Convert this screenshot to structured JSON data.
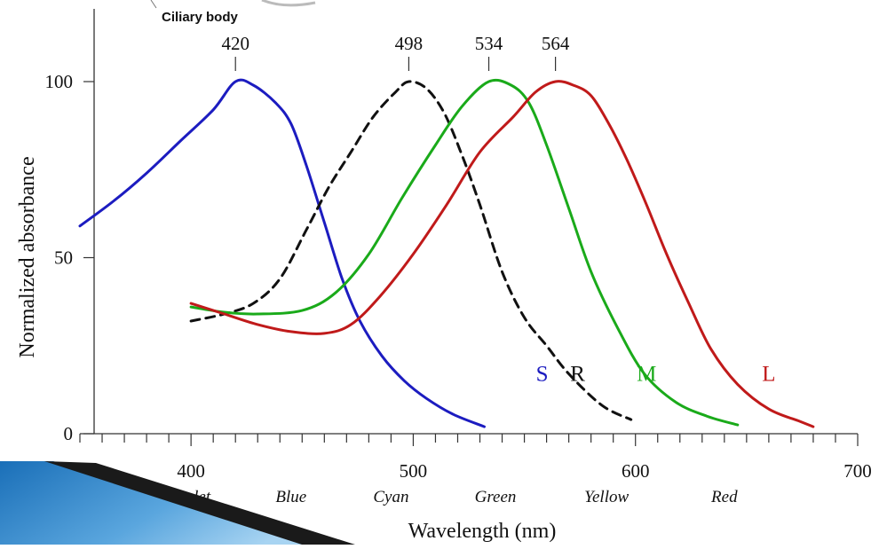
{
  "fragment_label": "Ciliary body",
  "chart_data": {
    "type": "line",
    "title": "",
    "xlabel": "Wavelength (nm)",
    "ylabel": "Normalized absorbance",
    "xlim": [
      350,
      700
    ],
    "ylim": [
      0,
      100
    ],
    "x_ticks": [
      400,
      500,
      600,
      700
    ],
    "y_ticks": [
      0,
      50,
      100
    ],
    "grid": false,
    "color_names": [
      {
        "x": 400,
        "label": "Violet"
      },
      {
        "x": 445,
        "label": "Blue"
      },
      {
        "x": 490,
        "label": "Cyan"
      },
      {
        "x": 537,
        "label": "Green"
      },
      {
        "x": 587,
        "label": "Yellow"
      },
      {
        "x": 640,
        "label": "Red"
      }
    ],
    "peaks": [
      {
        "x": 420,
        "label": "420"
      },
      {
        "x": 498,
        "label": "498"
      },
      {
        "x": 534,
        "label": "534"
      },
      {
        "x": 564,
        "label": "564"
      }
    ],
    "series": [
      {
        "name": "S",
        "color": "#1c1cc0",
        "dash": false,
        "label_pos": [
          558,
          17
        ],
        "points": [
          [
            350,
            59
          ],
          [
            365,
            66
          ],
          [
            380,
            74
          ],
          [
            395,
            83
          ],
          [
            410,
            92
          ],
          [
            420,
            100
          ],
          [
            428,
            99
          ],
          [
            438,
            94
          ],
          [
            445,
            88
          ],
          [
            452,
            76
          ],
          [
            460,
            60
          ],
          [
            468,
            44
          ],
          [
            476,
            32
          ],
          [
            486,
            22
          ],
          [
            496,
            15
          ],
          [
            506,
            10
          ],
          [
            518,
            5.5
          ],
          [
            532,
            2
          ]
        ]
      },
      {
        "name": "R",
        "color": "#111111",
        "dash": true,
        "label_pos": [
          574,
          17
        ],
        "points": [
          [
            400,
            32
          ],
          [
            415,
            34
          ],
          [
            428,
            37
          ],
          [
            440,
            44
          ],
          [
            452,
            58
          ],
          [
            462,
            70
          ],
          [
            472,
            80
          ],
          [
            482,
            90
          ],
          [
            492,
            97
          ],
          [
            498,
            100
          ],
          [
            506,
            98
          ],
          [
            514,
            91
          ],
          [
            522,
            79
          ],
          [
            530,
            65
          ],
          [
            540,
            46
          ],
          [
            550,
            33
          ],
          [
            560,
            25
          ],
          [
            570,
            17
          ],
          [
            585,
            8
          ],
          [
            598,
            4
          ]
        ]
      },
      {
        "name": "M",
        "color": "#1aaa1a",
        "dash": false,
        "label_pos": [
          605,
          17
        ],
        "points": [
          [
            400,
            36
          ],
          [
            415,
            34.5
          ],
          [
            430,
            34
          ],
          [
            450,
            35
          ],
          [
            465,
            40
          ],
          [
            480,
            51
          ],
          [
            495,
            67
          ],
          [
            510,
            82
          ],
          [
            522,
            93
          ],
          [
            534,
            100
          ],
          [
            544,
            99
          ],
          [
            552,
            94
          ],
          [
            560,
            82
          ],
          [
            570,
            64
          ],
          [
            580,
            46
          ],
          [
            592,
            30
          ],
          [
            604,
            17
          ],
          [
            618,
            9
          ],
          [
            632,
            5
          ],
          [
            646,
            2.5
          ]
        ]
      },
      {
        "name": "L",
        "color": "#c01a1a",
        "dash": false,
        "label_pos": [
          660,
          17
        ],
        "points": [
          [
            400,
            37
          ],
          [
            415,
            34
          ],
          [
            430,
            31
          ],
          [
            445,
            29
          ],
          [
            460,
            28.5
          ],
          [
            472,
            31
          ],
          [
            485,
            39
          ],
          [
            500,
            51
          ],
          [
            515,
            65
          ],
          [
            530,
            80
          ],
          [
            545,
            90
          ],
          [
            555,
            97
          ],
          [
            564,
            100
          ],
          [
            572,
            99
          ],
          [
            580,
            96
          ],
          [
            588,
            88
          ],
          [
            596,
            78
          ],
          [
            605,
            65
          ],
          [
            614,
            51
          ],
          [
            624,
            37
          ],
          [
            634,
            24
          ],
          [
            646,
            14
          ],
          [
            660,
            7
          ],
          [
            674,
            3.5
          ],
          [
            680,
            2
          ]
        ]
      }
    ]
  }
}
